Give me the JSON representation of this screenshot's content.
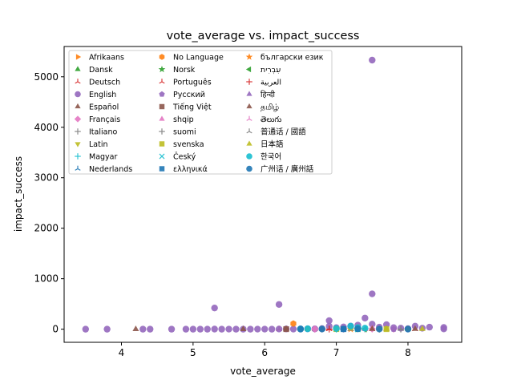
{
  "chart_data": {
    "type": "scatter",
    "title": "vote_average vs. impact_success",
    "xlabel": "vote_average",
    "ylabel": "impact_success",
    "xlim": [
      3.2,
      8.75
    ],
    "ylim": [
      -260,
      5600
    ],
    "xticks": [
      4,
      5,
      6,
      7,
      8
    ],
    "yticks": [
      0,
      1000,
      2000,
      3000,
      4000,
      5000
    ],
    "grid": false,
    "legend_position": "upper-left",
    "series": [
      {
        "name": "Afrikaans",
        "marker": "triangle-right",
        "color": "#ff7f0e",
        "points": [
          [
            7.3,
            2
          ]
        ]
      },
      {
        "name": "Dansk",
        "marker": "triangle-up",
        "color": "#2ca02c",
        "points": [
          [
            6.7,
            3
          ],
          [
            7.3,
            1
          ]
        ]
      },
      {
        "name": "Deutsch",
        "marker": "tri-down",
        "color": "#d62728",
        "points": [
          [
            6.2,
            1
          ],
          [
            6.9,
            3
          ],
          [
            7.4,
            2
          ],
          [
            7.6,
            5
          ],
          [
            8.1,
            2
          ]
        ]
      },
      {
        "name": "English",
        "marker": "circle",
        "color": "#9467bd",
        "points": [
          [
            3.5,
            0
          ],
          [
            3.8,
            0
          ],
          [
            4.3,
            0
          ],
          [
            4.4,
            0
          ],
          [
            4.7,
            0
          ],
          [
            4.9,
            0
          ],
          [
            5.0,
            0
          ],
          [
            5.1,
            0
          ],
          [
            5.2,
            0
          ],
          [
            5.3,
            420
          ],
          [
            5.3,
            2
          ],
          [
            5.4,
            0
          ],
          [
            5.5,
            1
          ],
          [
            5.6,
            0
          ],
          [
            5.7,
            0
          ],
          [
            5.8,
            0
          ],
          [
            5.9,
            1
          ],
          [
            6.0,
            1
          ],
          [
            6.1,
            0
          ],
          [
            6.2,
            490
          ],
          [
            6.2,
            3
          ],
          [
            6.3,
            5
          ],
          [
            6.4,
            2
          ],
          [
            6.5,
            4
          ],
          [
            6.6,
            8
          ],
          [
            6.7,
            6
          ],
          [
            6.8,
            12
          ],
          [
            6.9,
            170
          ],
          [
            6.9,
            60
          ],
          [
            7.0,
            30
          ],
          [
            7.1,
            45
          ],
          [
            7.2,
            60
          ],
          [
            7.3,
            80
          ],
          [
            7.4,
            220
          ],
          [
            7.5,
            5330
          ],
          [
            7.5,
            700
          ],
          [
            7.5,
            100
          ],
          [
            7.6,
            40
          ],
          [
            7.7,
            90
          ],
          [
            7.8,
            30
          ],
          [
            7.9,
            20
          ],
          [
            8.0,
            10
          ],
          [
            8.1,
            60
          ],
          [
            8.2,
            20
          ],
          [
            8.3,
            40
          ],
          [
            8.5,
            5
          ],
          [
            8.5,
            35
          ]
        ]
      },
      {
        "name": "Español",
        "marker": "triangle-up",
        "color": "#8c564b",
        "points": [
          [
            4.2,
            0
          ],
          [
            5.7,
            0
          ],
          [
            6.3,
            5
          ],
          [
            6.8,
            2
          ],
          [
            7.2,
            3
          ],
          [
            7.7,
            4
          ],
          [
            8.1,
            3
          ]
        ]
      },
      {
        "name": "Français",
        "marker": "diamond",
        "color": "#e377c2",
        "points": [
          [
            6.5,
            5
          ],
          [
            6.7,
            2
          ],
          [
            7.1,
            4
          ],
          [
            7.5,
            6
          ],
          [
            7.8,
            3
          ]
        ]
      },
      {
        "name": "Italiano",
        "marker": "plus",
        "color": "#7f7f7f",
        "points": [
          [
            6.8,
            2
          ],
          [
            7.4,
            3
          ],
          [
            7.9,
            1
          ]
        ]
      },
      {
        "name": "Latin",
        "marker": "triangle-down",
        "color": "#bcbd22",
        "points": [
          [
            7.6,
            2
          ]
        ]
      },
      {
        "name": "Magyar",
        "marker": "plus",
        "color": "#17becf",
        "points": [
          [
            7.0,
            1
          ]
        ]
      },
      {
        "name": "Nederlands",
        "marker": "tri-down",
        "color": "#1f77b4",
        "points": [
          [
            7.2,
            2
          ]
        ]
      },
      {
        "name": "No Language",
        "marker": "hexagon",
        "color": "#ff7f0e",
        "points": [
          [
            6.4,
            110
          ]
        ]
      },
      {
        "name": "Norsk",
        "marker": "star",
        "color": "#2ca02c",
        "points": [
          [
            7.3,
            1
          ]
        ]
      },
      {
        "name": "Português",
        "marker": "tri-down",
        "color": "#d62728",
        "points": [
          [
            6.9,
            2
          ],
          [
            7.5,
            1
          ]
        ]
      },
      {
        "name": "Pусский",
        "marker": "pentagon",
        "color": "#9467bd",
        "points": [
          [
            7.1,
            3
          ],
          [
            7.8,
            2
          ]
        ]
      },
      {
        "name": "Tiếng Việt",
        "marker": "square",
        "color": "#8c564b",
        "points": [
          [
            6.3,
            1
          ]
        ]
      },
      {
        "name": "shqip",
        "marker": "triangle-up",
        "color": "#e377c2",
        "points": [
          [
            7.4,
            1
          ]
        ]
      },
      {
        "name": "suomi",
        "marker": "plus",
        "color": "#7f7f7f",
        "points": [
          [
            7.6,
            1
          ]
        ]
      },
      {
        "name": "svenska",
        "marker": "square",
        "color": "#bcbd22",
        "points": [
          [
            7.0,
            2
          ],
          [
            7.7,
            1
          ]
        ]
      },
      {
        "name": "Český",
        "marker": "x",
        "color": "#17becf",
        "points": [
          [
            7.3,
            3
          ]
        ]
      },
      {
        "name": "ελληνικά",
        "marker": "square",
        "color": "#1f77b4",
        "points": [
          [
            7.1,
            1
          ]
        ]
      },
      {
        "name": "български език",
        "marker": "star",
        "color": "#ff7f0e",
        "points": [
          [
            7.2,
            2
          ]
        ]
      },
      {
        "name": "עִבְרִית",
        "marker": "triangle-left",
        "color": "#2ca02c",
        "points": [
          [
            7.4,
            1
          ]
        ]
      },
      {
        "name": "العربية",
        "marker": "plus",
        "color": "#d62728",
        "points": [
          [
            6.9,
            1
          ]
        ]
      },
      {
        "name": "हिन्दी",
        "marker": "triangle-up",
        "color": "#9467bd",
        "points": [
          [
            7.2,
            3
          ]
        ]
      },
      {
        "name": "தமிழ்",
        "marker": "triangle-up",
        "color": "#8c564b",
        "points": [
          [
            7.5,
            2
          ]
        ]
      },
      {
        "name": "తెలుగు",
        "marker": "tri-down",
        "color": "#e377c2",
        "points": [
          [
            7.4,
            2
          ]
        ]
      },
      {
        "name": "普通话 / 國語",
        "marker": "tri-down",
        "color": "#7f7f7f",
        "points": [
          [
            6.6,
            2
          ],
          [
            7.9,
            3
          ]
        ]
      },
      {
        "name": "日本語",
        "marker": "triangle-up",
        "color": "#bcbd22",
        "points": [
          [
            6.6,
            5
          ],
          [
            7.2,
            8
          ],
          [
            7.7,
            10
          ],
          [
            8.0,
            4
          ],
          [
            8.2,
            3
          ]
        ]
      },
      {
        "name": "한국어",
        "marker": "circle",
        "color": "#17becf",
        "points": [
          [
            6.5,
            5
          ],
          [
            6.6,
            8
          ],
          [
            7.0,
            12
          ],
          [
            7.2,
            60
          ],
          [
            7.3,
            30
          ],
          [
            7.3,
            10
          ],
          [
            7.4,
            20
          ]
        ]
      },
      {
        "name": "广州话 / 廣州話",
        "marker": "circle",
        "color": "#1f77b4",
        "points": [
          [
            6.5,
            2
          ],
          [
            6.8,
            3
          ],
          [
            7.1,
            5
          ],
          [
            7.3,
            8
          ],
          [
            7.6,
            3
          ],
          [
            8.0,
            2
          ]
        ]
      }
    ]
  }
}
